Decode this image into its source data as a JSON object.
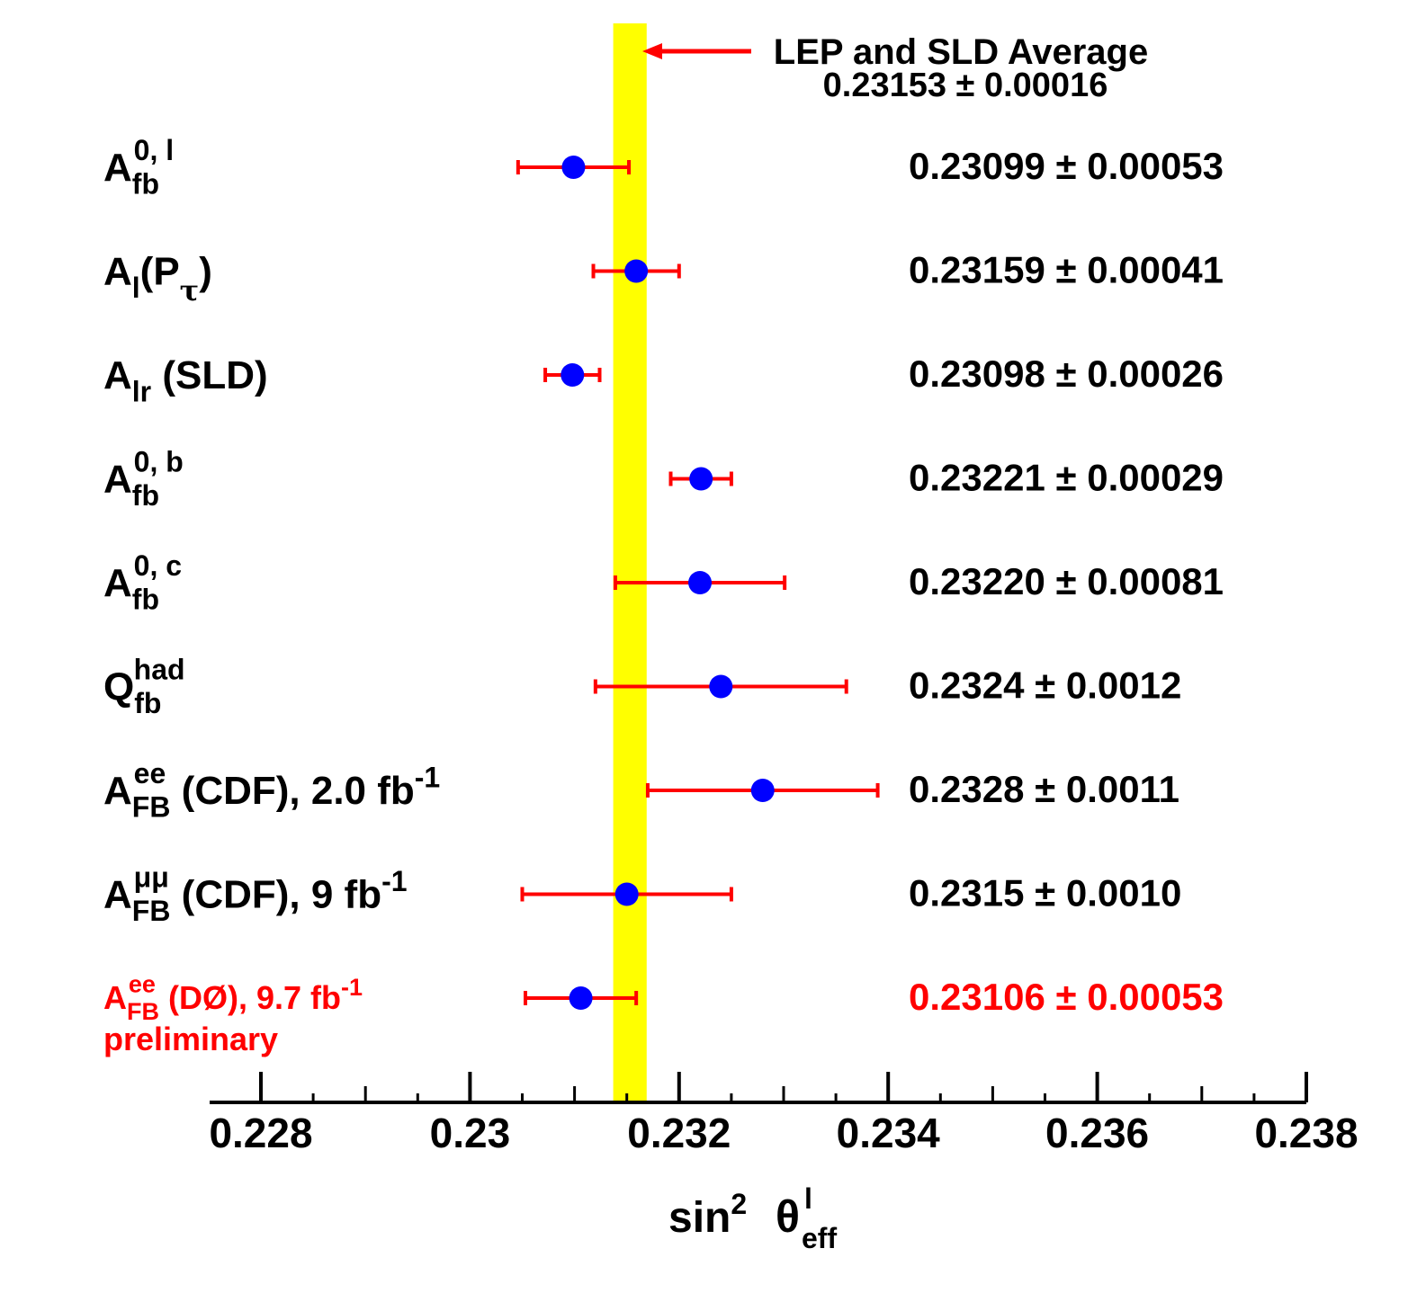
{
  "chart_data": {
    "type": "scatter",
    "xlabel": {
      "main": "sin",
      "sup": "2",
      "theta": "θ",
      "theta_sup": "l",
      "theta_sub": "eff"
    },
    "xlim": [
      0.2275,
      0.238
    ],
    "ticks": [
      0.228,
      0.23,
      0.232,
      0.234,
      0.236,
      0.238
    ],
    "tick_labels": [
      "0.228",
      "0.23",
      "0.232",
      "0.234",
      "0.236",
      "0.238"
    ],
    "average": {
      "value": 0.23153,
      "error": 0.00016,
      "label": "LEP and SLD Average",
      "value_text": "0.23153 ± 0.00016",
      "band_color": "#ffff00"
    },
    "colors": {
      "point": "#0000ff",
      "errorbar": "#ff0000",
      "highlight": "#ff0000",
      "text": "#000000"
    },
    "measurements": [
      {
        "label": {
          "main": "A",
          "sub": "fb",
          "sup": "0, l",
          "suffix": ""
        },
        "value": 0.23099,
        "error": 0.00053,
        "value_text": "0.23099 ± 0.00053",
        "highlight": false
      },
      {
        "label": {
          "main": "A",
          "sub": "l",
          "suffix": "(P",
          "sub2": "τ",
          "suffix2": ")"
        },
        "value": 0.23159,
        "error": 0.00041,
        "value_text": "0.23159 ± 0.00041",
        "highlight": false
      },
      {
        "label": {
          "main": "A",
          "sub": "lr",
          "suffix": " (SLD)"
        },
        "value": 0.23098,
        "error": 0.00026,
        "value_text": "0.23098 ± 0.00026",
        "highlight": false
      },
      {
        "label": {
          "main": "A",
          "sub": "fb",
          "sup": "0, b",
          "suffix": ""
        },
        "value": 0.23221,
        "error": 0.00029,
        "value_text": "0.23221 ± 0.00029",
        "highlight": false
      },
      {
        "label": {
          "main": "A",
          "sub": "fb",
          "sup": "0, c",
          "suffix": ""
        },
        "value": 0.2322,
        "error": 0.00081,
        "value_text": "0.23220 ± 0.00081",
        "highlight": false
      },
      {
        "label": {
          "main": "Q",
          "sub": "fb",
          "sup": "had",
          "suffix": ""
        },
        "value": 0.2324,
        "error": 0.0012,
        "value_text": "0.2324 ± 0.0012",
        "highlight": false
      },
      {
        "label": {
          "main": "A",
          "sub": "FB",
          "sup": "ee",
          "suffix": " (CDF), 2.0 fb",
          "suffix_sup": "-1"
        },
        "value": 0.2328,
        "error": 0.0011,
        "value_text": "0.2328 ± 0.0011",
        "highlight": false
      },
      {
        "label": {
          "main": "A",
          "sub": "FB",
          "sup": "μμ",
          "suffix": " (CDF), 9 fb",
          "suffix_sup": "-1"
        },
        "value": 0.2315,
        "error": 0.001,
        "value_text": "0.2315 ± 0.0010",
        "highlight": false
      },
      {
        "label": {
          "main": "A",
          "sub": "FB",
          "sup": "ee",
          "suffix": " (DØ), 9.7 fb",
          "suffix_sup": "-1",
          "line2": "preliminary"
        },
        "value": 0.23106,
        "error": 0.00053,
        "value_text": "0.23106 ± 0.00053",
        "highlight": true
      }
    ]
  }
}
